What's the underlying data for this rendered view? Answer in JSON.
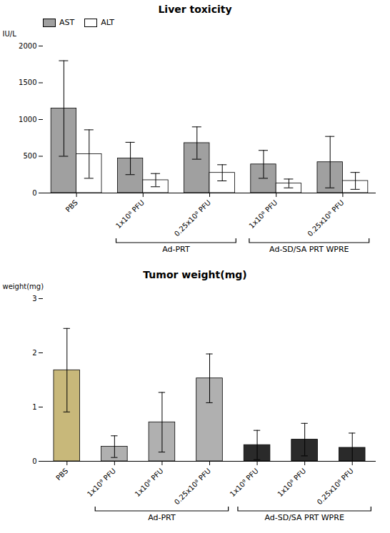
{
  "chart_data": [
    {
      "type": "bar",
      "title": "Liver toxicity",
      "y_label": "IU/L",
      "categories": [
        "PBS",
        "1x10⁸ PFU",
        "0.25x10⁸ PFU",
        "1x10⁸ PFU",
        "0.25x10⁸ PFU"
      ],
      "groups": [
        null,
        "Ad-PRT",
        "Ad-PRT",
        "Ad-SD/SA PRT WPRE",
        "Ad-SD/SA PRT WPRE"
      ],
      "series": [
        {
          "name": "AST",
          "color": "#a0a0a0",
          "values": [
            1150,
            470,
            680,
            390,
            420
          ],
          "errors": [
            650,
            220,
            220,
            190,
            350
          ]
        },
        {
          "name": "ALT",
          "color": "white",
          "values": [
            530,
            175,
            275,
            130,
            165
          ],
          "errors": [
            330,
            90,
            110,
            60,
            115
          ]
        }
      ],
      "ylim": [
        0,
        2000
      ],
      "yticks": [
        0,
        500,
        1000,
        1500,
        2000
      ],
      "grid": false,
      "legend": "upper left"
    },
    {
      "type": "bar",
      "title": "Tumor weight(mg)",
      "y_label": "weight(mg)",
      "categories": [
        "PBS",
        "1x10⁹ PFU",
        "1x10⁸ PFU",
        "0.25x10⁸ PFU",
        "1x10⁹ PFU",
        "1x10⁸ PFU",
        "0.25x10⁸ PFU"
      ],
      "groups": [
        null,
        "Ad-PRT",
        "Ad-PRT",
        "Ad-PRT",
        "Ad-SD/SA PRT WPRE",
        "Ad-SD/SA PRT WPRE",
        "Ad-SD/SA PRT WPRE"
      ],
      "values": [
        1.68,
        0.27,
        0.72,
        1.53,
        0.3,
        0.4,
        0.25
      ],
      "errors": [
        0.77,
        0.2,
        0.55,
        0.45,
        0.27,
        0.3,
        0.27
      ],
      "colors": [
        "#c8b87a",
        "#b0b0b0",
        "#b0b0b0",
        "#b0b0b0",
        "#2a2a2a",
        "#2a2a2a",
        "#2a2a2a"
      ],
      "ylim": [
        0,
        3
      ],
      "yticks": [
        0,
        1,
        2,
        3
      ],
      "grid": false
    }
  ]
}
